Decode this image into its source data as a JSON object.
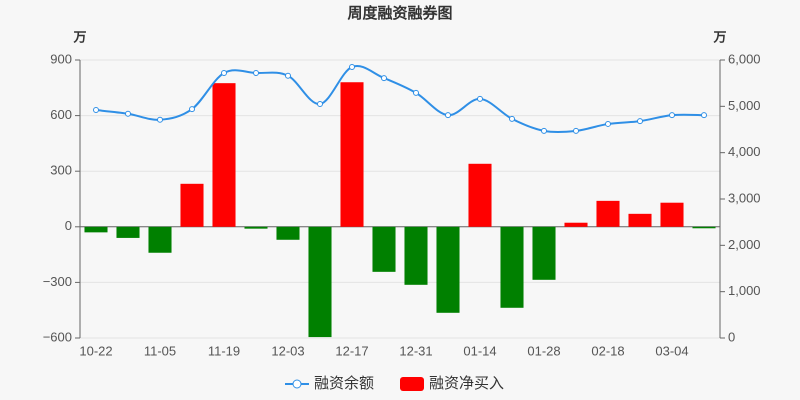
{
  "chart_data": {
    "type": "bar_line",
    "title": "周度融资融券图",
    "y_unit": "万",
    "y2_unit": "万",
    "categories": [
      "10-22",
      null,
      "11-05",
      null,
      "11-19",
      null,
      "12-03",
      null,
      "12-17",
      null,
      "12-31",
      null,
      "01-14",
      null,
      "01-28",
      null,
      "02-18",
      null,
      "03-04",
      null
    ],
    "series": [
      {
        "name": "融资余额",
        "type": "line",
        "axis": "y2",
        "color": "#2f8fe6",
        "values": [
          4920,
          4840,
          4710,
          4940,
          5720,
          5720,
          5660,
          5050,
          5850,
          5610,
          5290,
          4810,
          5160,
          4730,
          4470,
          4470,
          4620,
          4680,
          4810,
          4810
        ]
      },
      {
        "name": "融资净买入",
        "type": "bar",
        "axis": "y",
        "color": "#ff0000",
        "negative_color": "#008000",
        "values": [
          -30,
          -60,
          -140,
          232,
          775,
          -10,
          -70,
          -595,
          780,
          -243,
          -313,
          -464,
          340,
          -437,
          -286,
          22,
          140,
          70,
          130,
          -8
        ]
      }
    ],
    "ylim": [
      -600,
      900
    ],
    "yticks": [
      {
        "value": -600,
        "label": "−600"
      },
      {
        "value": -300,
        "label": "−300"
      },
      0,
      300,
      600,
      900
    ],
    "y2lim": [
      0,
      6000
    ],
    "y2ticks": [
      0,
      {
        "value": 1000,
        "label": "1,000"
      },
      {
        "value": 2000,
        "label": "2,000"
      },
      {
        "value": 3000,
        "label": "3,000"
      },
      {
        "value": 4000,
        "label": "4,000"
      },
      {
        "value": 5000,
        "label": "5,000"
      },
      {
        "value": 6000,
        "label": "6,000"
      }
    ],
    "grid": true,
    "legend": "bottom"
  }
}
